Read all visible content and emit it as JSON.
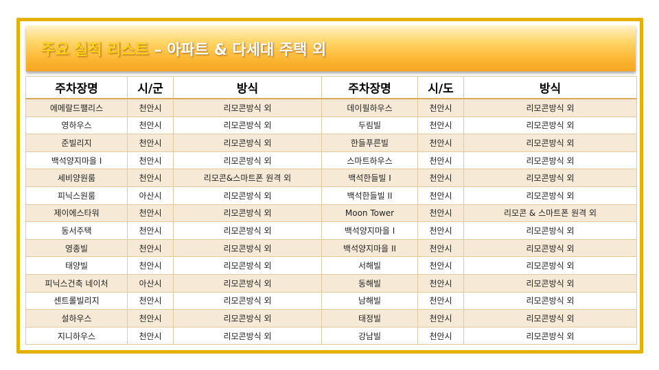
{
  "title": {
    "highlight": "주요 실적 리스트",
    "rest": " – 아파트 & 다세대 주택 외"
  },
  "headers": [
    "주차장명",
    "시/군",
    "방식",
    "주차장명",
    "시/도",
    "방식"
  ],
  "rows": [
    [
      "에메랄드팰리스",
      "천안시",
      "리모콘방식 외",
      "데이필하우스",
      "천안시",
      "리모콘방식 외"
    ],
    [
      "영하우스",
      "천안시",
      "리모콘방식 외",
      "두림빌",
      "천안시",
      "리모콘방식 외"
    ],
    [
      "준빌리지",
      "천안시",
      "리모콘방식 외",
      "한들푸른빌",
      "천안시",
      "리모콘방식 외"
    ],
    [
      "백석양지마을 I",
      "천안시",
      "리모콘방식 외",
      "스마트하우스",
      "천안시",
      "리모콘방식 외"
    ],
    [
      "세비양원룸",
      "천안시",
      "리모콘&스마트폰 원격 외",
      "백석한들빌 I",
      "천안시",
      "리모콘방식 외"
    ],
    [
      "피닉스원룸",
      "아산시",
      "리모콘방식 외",
      "백석한들빌 II",
      "천안시",
      "리모콘방식 외"
    ],
    [
      "제이에스타워",
      "천안시",
      "리모콘방식 외",
      "Moon Tower",
      "천안시",
      "리모콘 & 스마트폰 원격 외"
    ],
    [
      "동서주택",
      "천안시",
      "리모콘방식 외",
      "백석양지마을 I",
      "천안시",
      "리모콘방식 외"
    ],
    [
      "영종빌",
      "천안시",
      "리모콘방식 외",
      "백석양지마을 II",
      "천안시",
      "리모콘방식 외"
    ],
    [
      "태양빌",
      "천안시",
      "리모콘방식 외",
      "서해빌",
      "천안시",
      "리모콘방식 외"
    ],
    [
      "피닉스건축 네이처",
      "아산시",
      "리모콘방식 외",
      "동해빌",
      "천안시",
      "리모콘방식 외"
    ],
    [
      "센트롤빌리지",
      "천안시",
      "리모콘방식 외",
      "남해빌",
      "천안시",
      "리모콘방식 외"
    ],
    [
      "설하우스",
      "천안시",
      "리모콘방식 외",
      "태정빌",
      "천안시",
      "리모콘방식 외"
    ],
    [
      "지니하우스",
      "천안시",
      "리모콘방식 외",
      "강남빌",
      "천안시",
      "리모콘방식 외"
    ]
  ],
  "colors": {
    "frame": "#e6b000",
    "title_bar": "#fcb531",
    "row_alt": "#f6ead7"
  }
}
